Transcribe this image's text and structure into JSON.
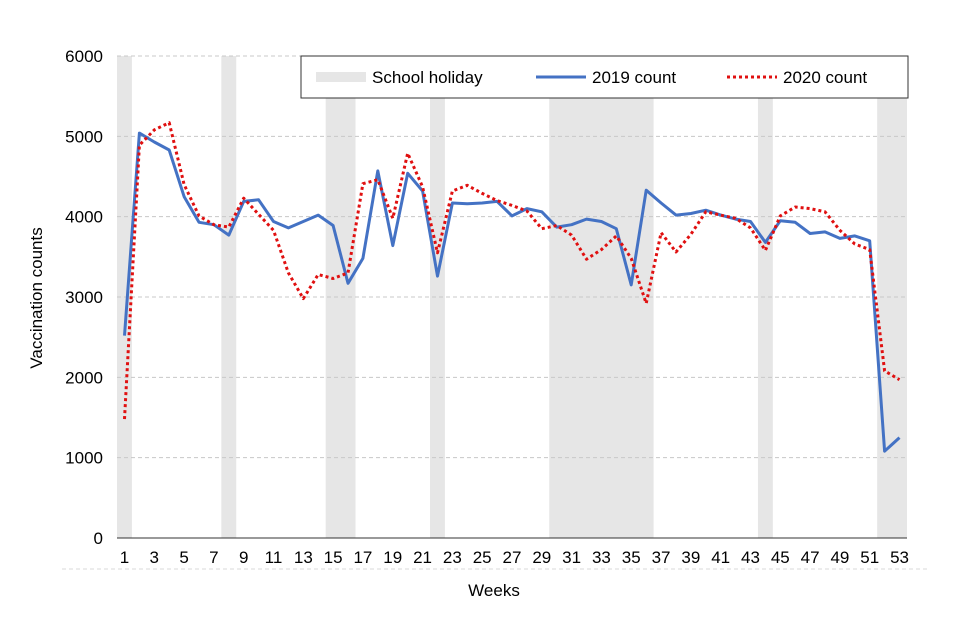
{
  "chart_data": {
    "type": "line",
    "xlabel": "Weeks",
    "ylabel": "Vaccination counts",
    "xlim": [
      1,
      53
    ],
    "ylim": [
      0,
      6000
    ],
    "y_ticks": [
      0,
      1000,
      2000,
      3000,
      4000,
      5000,
      6000
    ],
    "x_ticks": [
      1,
      3,
      5,
      7,
      9,
      11,
      13,
      15,
      17,
      19,
      21,
      23,
      25,
      27,
      29,
      31,
      33,
      35,
      37,
      39,
      41,
      43,
      45,
      47,
      49,
      51,
      53
    ],
    "grid": "horizontal dashed",
    "legend_position": "top-right",
    "school_holidays": [
      [
        1,
        1
      ],
      [
        8,
        8
      ],
      [
        15,
        16
      ],
      [
        22,
        22
      ],
      [
        30,
        36
      ],
      [
        44,
        44
      ],
      [
        52,
        53
      ]
    ],
    "x": [
      1,
      2,
      3,
      4,
      5,
      6,
      7,
      8,
      9,
      10,
      11,
      12,
      13,
      14,
      15,
      16,
      17,
      18,
      19,
      20,
      21,
      22,
      23,
      24,
      25,
      26,
      27,
      28,
      29,
      30,
      31,
      32,
      33,
      34,
      35,
      36,
      37,
      38,
      39,
      40,
      41,
      42,
      43,
      44,
      45,
      46,
      47,
      48,
      49,
      50,
      51,
      52,
      53
    ],
    "series": [
      {
        "name": "2019 count",
        "color": "#4472C4",
        "style": "solid",
        "values": [
          2520,
          5040,
          4930,
          4830,
          4250,
          3930,
          3900,
          3770,
          4190,
          4210,
          3940,
          3860,
          3940,
          4020,
          3890,
          3170,
          3480,
          4570,
          3640,
          4540,
          4320,
          3260,
          4170,
          4160,
          4170,
          4190,
          4010,
          4100,
          4060,
          3870,
          3900,
          3970,
          3940,
          3850,
          3150,
          4330,
          4170,
          4020,
          4040,
          4080,
          4020,
          3970,
          3940,
          3680,
          3950,
          3930,
          3790,
          3810,
          3730,
          3760,
          3700,
          1080,
          1250
        ]
      },
      {
        "name": "2020 count",
        "color": "#E01010",
        "style": "dotted",
        "values": [
          1480,
          4890,
          5080,
          5170,
          4400,
          4010,
          3900,
          3870,
          4230,
          4030,
          3830,
          3300,
          2980,
          3280,
          3230,
          3300,
          4410,
          4460,
          3980,
          4790,
          4370,
          3550,
          4320,
          4390,
          4290,
          4200,
          4140,
          4070,
          3850,
          3890,
          3770,
          3470,
          3590,
          3760,
          3480,
          2920,
          3800,
          3560,
          3780,
          4060,
          4020,
          3980,
          3860,
          3580,
          4010,
          4120,
          4100,
          4060,
          3830,
          3660,
          3590,
          2080,
          1970
        ]
      }
    ],
    "legend": {
      "holiday_label": "School holiday",
      "holiday_color": "#E6E6E6"
    }
  }
}
